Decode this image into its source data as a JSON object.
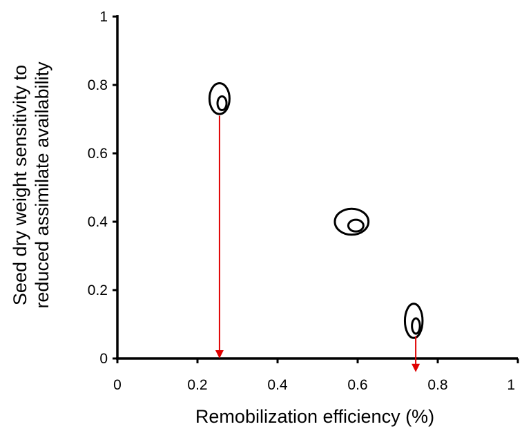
{
  "chart_data": {
    "type": "scatter",
    "title": "",
    "xlabel": "Remobilization efficiency (%)",
    "ylabel_lines": [
      "Seed dry weight sensitivity to",
      "reduced assimilate availability"
    ],
    "xlim": [
      0,
      1
    ],
    "ylim": [
      0,
      1
    ],
    "x_ticks": [
      0,
      0.2,
      0.4,
      0.6,
      0.8,
      1
    ],
    "x_tick_labels": [
      "0",
      "0.2",
      "0.4",
      "0.6",
      "0.8",
      "1"
    ],
    "y_ticks": [
      0,
      0.2,
      0.4,
      0.6,
      0.8,
      1
    ],
    "y_tick_labels": [
      "0",
      "0.2",
      "0.4",
      "0.6",
      "0.8",
      "1"
    ],
    "grid": false,
    "legend": "none",
    "clusters": [
      {
        "x": 0.255,
        "y": 0.76,
        "rx": 0.025,
        "ry": 0.045
      },
      {
        "x": 0.585,
        "y": 0.4,
        "rx": 0.042,
        "ry": 0.038
      },
      {
        "x": 0.74,
        "y": 0.11,
        "rx": 0.022,
        "ry": 0.05
      }
    ],
    "arrows": [
      {
        "x": 0.255,
        "from_y": 0.71,
        "to_y": 0.0
      },
      {
        "x": 0.745,
        "from_y": 0.065,
        "to_y": -0.04
      }
    ],
    "colors": {
      "axis": "#000000",
      "arrow": "#e00000",
      "cluster": "#000000"
    }
  }
}
